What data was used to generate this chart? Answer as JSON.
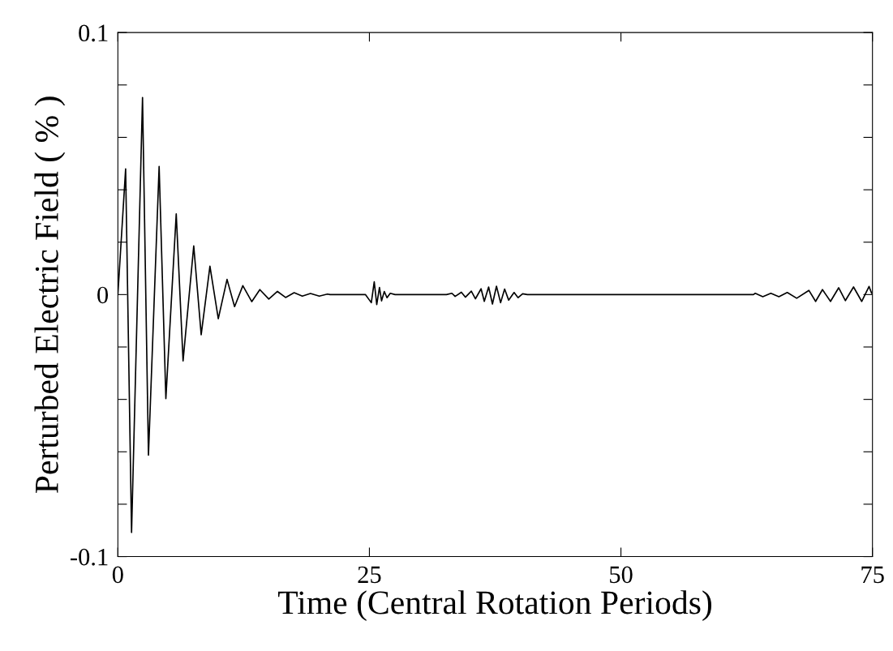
{
  "chart_data": {
    "type": "line",
    "xlabel": "Time (Central Rotation Periods)",
    "ylabel": "Perturbed Electric Field ( % )",
    "xlim": [
      0,
      75
    ],
    "xticks": [
      0,
      25,
      50,
      75
    ],
    "ylim": [
      -0.1,
      0.1
    ],
    "yticks": [
      {
        "value": -0.1,
        "label": "-0.1"
      },
      {
        "value": -0.08,
        "label": null
      },
      {
        "value": -0.06,
        "label": null
      },
      {
        "value": -0.04,
        "label": null
      },
      {
        "value": -0.02,
        "label": null
      },
      0,
      {
        "value": 0.02,
        "label": null
      },
      {
        "value": 0.04,
        "label": null
      },
      {
        "value": 0.06,
        "label": null
      },
      {
        "value": 0.08,
        "label": null
      },
      {
        "value": 0.1,
        "label": "0.1"
      }
    ],
    "marker": "none",
    "line_style": "solid",
    "series": [
      {
        "color": "#000000",
        "x": [
          0,
          0.77,
          1.36,
          2.45,
          3.04,
          4.1,
          4.77,
          5.8,
          6.48,
          7.54,
          8.28,
          9.15,
          9.98,
          10.85,
          11.6,
          12.42,
          13.31,
          14.11,
          15.0,
          15.86,
          16.67,
          17.52,
          18.33,
          19.14,
          20.02,
          20.83,
          21.1,
          24.6,
          25.19,
          25.48,
          25.73,
          26.0,
          26.21,
          26.48,
          26.75,
          27.07,
          27.55,
          32.66,
          33.2,
          33.52,
          34.14,
          34.54,
          35.13,
          35.54,
          36.1,
          36.42,
          36.85,
          37.23,
          37.63,
          38.04,
          38.44,
          38.84,
          39.38,
          39.78,
          40.23,
          40.7,
          63.17,
          63.35,
          64.1,
          64.9,
          65.7,
          66.53,
          67.47,
          68.68,
          69.35,
          70.03,
          70.83,
          71.64,
          72.31,
          73.12,
          73.93,
          74.66,
          74.92
        ],
        "values": [
          0,
          0.048,
          -0.0908,
          0.0752,
          -0.0613,
          0.0489,
          -0.0397,
          0.0308,
          -0.0253,
          0.0186,
          -0.0153,
          0.0108,
          -0.0092,
          0.0058,
          -0.0046,
          0.0034,
          -0.0027,
          0.0019,
          -0.0017,
          0.0012,
          -0.0011,
          0.0007,
          -0.0006,
          0.0004,
          -0.0006,
          0.0002,
          0,
          0,
          -0.0031,
          0.0049,
          -0.0038,
          0.0027,
          -0.0024,
          0.0012,
          -0.0012,
          0.0005,
          0,
          0,
          0.0005,
          -0.0007,
          0.0009,
          -0.001,
          0.0013,
          -0.0016,
          0.0022,
          -0.0026,
          0.0029,
          -0.0036,
          0.0032,
          -0.0031,
          0.0021,
          -0.0021,
          0.0008,
          -0.0012,
          0.0003,
          0,
          0,
          0.0005,
          -0.0008,
          0.0005,
          -0.0008,
          0.0008,
          -0.0014,
          0.0016,
          -0.0026,
          0.0019,
          -0.0026,
          0.0026,
          -0.0023,
          0.0029,
          -0.0026,
          0.0031,
          0.0005
        ]
      }
    ]
  }
}
